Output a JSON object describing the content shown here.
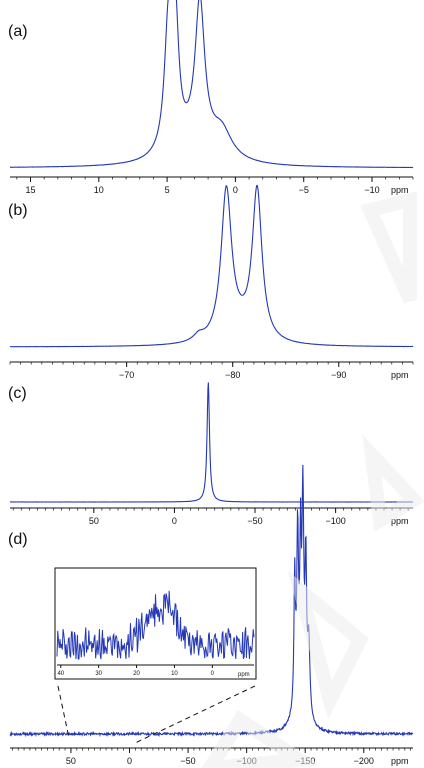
{
  "colors": {
    "spectrum": "#2438b6",
    "axis": "#111111",
    "watermark": "#ececec"
  },
  "chart_data": [
    {
      "panel": "(a)",
      "type": "line",
      "xlabel": "ppm",
      "reversed_x": true,
      "xlim": [
        16.5,
        -13.0
      ],
      "ticks": [
        15,
        10,
        5,
        0,
        -5,
        -10
      ],
      "tick_labels": [
        "15",
        "10",
        "5",
        "0",
        "−5",
        "−10"
      ],
      "minor_tick_step": 1,
      "peaks": [
        [
          4.9,
          0.83,
          0.35
        ],
        [
          4.4,
          0.81,
          0.3
        ],
        [
          2.6,
          0.95,
          0.42
        ],
        [
          1.0,
          0.18,
          0.9
        ],
        [
          3.0,
          0.13,
          1.8
        ]
      ],
      "baseline": 0.0
    },
    {
      "panel": "(b)",
      "type": "line",
      "xlabel": "ppm",
      "reversed_x": true,
      "xlim": [
        -59.0,
        -97.0
      ],
      "ticks": [
        -70,
        -80,
        -90
      ],
      "tick_labels": [
        "−70",
        "−80",
        "−90"
      ],
      "minor_tick_step": 1,
      "peaks": [
        [
          -79.4,
          0.97,
          0.6
        ],
        [
          -82.3,
          0.97,
          0.55
        ],
        [
          -76.8,
          0.04,
          0.6
        ],
        [
          -80.8,
          0.07,
          1.4
        ]
      ],
      "baseline": 0.0
    },
    {
      "panel": "(c)",
      "type": "line",
      "xlabel": "ppm",
      "reversed_x": true,
      "xlim": [
        102.0,
        -148.0
      ],
      "ticks": [
        50,
        0,
        -50,
        -100
      ],
      "tick_labels": [
        "50",
        "0",
        "−50",
        "−100"
      ],
      "minor_tick_step": 5,
      "peaks": [
        [
          -21.0,
          1.0,
          0.9
        ]
      ],
      "baseline": 0.0
    },
    {
      "panel": "(d)",
      "type": "line",
      "xlabel": "ppm",
      "reversed_x": true,
      "xlim": [
        102.0,
        -242.0
      ],
      "ticks": [
        50,
        0,
        -50,
        -100,
        -150,
        -200
      ],
      "tick_labels": [
        "50",
        "0",
        "−50",
        "−100",
        "−150",
        "−200"
      ],
      "minor_tick_step": 5,
      "peaks": [
        [
          -141.0,
          0.64,
          0.7
        ],
        [
          -143.5,
          0.76,
          0.8
        ],
        [
          -146.0,
          0.64,
          0.6
        ],
        [
          -148.0,
          1.0,
          0.9
        ],
        [
          -150.5,
          0.72,
          0.8
        ],
        [
          -153.0,
          0.38,
          1.2
        ],
        [
          -145.0,
          0.3,
          4.0
        ]
      ],
      "baseline": 0.0,
      "inset": {
        "xlabel": "ppm",
        "reversed_x": true,
        "xlim": [
          41.0,
          -11.0
        ],
        "ticks": [
          40,
          30,
          20,
          10,
          0
        ],
        "tick_labels": [
          "40",
          "30",
          "20",
          "10",
          "0"
        ],
        "magnified_range": [
          40.0,
          -10.0
        ]
      }
    }
  ]
}
